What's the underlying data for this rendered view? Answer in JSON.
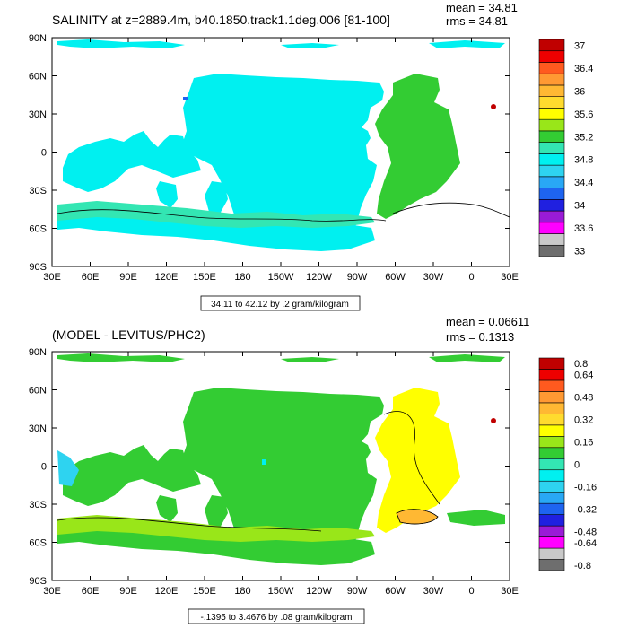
{
  "colors": {
    "background": "#ffffff",
    "land": "#ffffff",
    "frame": "#000000",
    "contour": "#000000"
  },
  "chart_data": [
    {
      "type": "heatmap",
      "title": "SALINITY at z=2889.4m, b40.1850.track1.1deg.006 [81-100]",
      "stats": {
        "mean": "mean = 34.81",
        "rms": "rms = 34.81"
      },
      "range_label": "34.11 to 42.12 by .2 gram/kilogram",
      "xlim": [
        30,
        390
      ],
      "ylim": [
        -90,
        90
      ],
      "x_ticks": [
        "30E",
        "60E",
        "90E",
        "120E",
        "150E",
        "180",
        "150W",
        "120W",
        "90W",
        "60W",
        "30W",
        "0",
        "30E"
      ],
      "y_ticks": [
        "90N",
        "60N",
        "30N",
        "0",
        "30S",
        "60S",
        "90S"
      ],
      "colorbar": {
        "colors": [
          "#6e6e6e",
          "#c9c9c9",
          "#ff00ff",
          "#9a1bd6",
          "#2020e0",
          "#1e64f0",
          "#29a8f5",
          "#2ed3f0",
          "#00f0f0",
          "#33e6b3",
          "#33cc33",
          "#99e619",
          "#ffff00",
          "#ffdb2e",
          "#ffb833",
          "#ff9933",
          "#ff5a1f",
          "#ee0000",
          "#c00000"
        ],
        "labels": [
          "33",
          "33.6",
          "34",
          "34.4",
          "34.8",
          "35.2",
          "35.6",
          "36",
          "36.4",
          "37"
        ],
        "label_positions": [
          0,
          2,
          4,
          6,
          8,
          10,
          12,
          14,
          16,
          18
        ]
      },
      "fields": {
        "pacific_indian": "#00f0f0",
        "atlantic": "#33cc33",
        "southern": "#33e6b3",
        "arctic": "#00f0f0",
        "med_spot": "#c00000",
        "spot_blue": "#1e64f0"
      }
    },
    {
      "type": "heatmap",
      "title": "(MODEL - LEVITUS/PHC2)",
      "stats": {
        "mean": "mean = 0.06611",
        "rms": "rms = 0.1313"
      },
      "range_label": "-.1395 to 3.4676 by .08 gram/kilogram",
      "xlim": [
        30,
        390
      ],
      "ylim": [
        -90,
        90
      ],
      "x_ticks": [
        "30E",
        "60E",
        "90E",
        "120E",
        "150E",
        "180",
        "150W",
        "120W",
        "90W",
        "60W",
        "30W",
        "0",
        "30E"
      ],
      "y_ticks": [
        "90N",
        "60N",
        "30N",
        "0",
        "30S",
        "60S",
        "90S"
      ],
      "colorbar": {
        "colors": [
          "#6e6e6e",
          "#c9c9c9",
          "#ff00ff",
          "#9a1bd6",
          "#2020e0",
          "#1e64f0",
          "#29a8f5",
          "#2ed3f0",
          "#00f0f0",
          "#33e6b3",
          "#33cc33",
          "#99e619",
          "#ffff00",
          "#ffdb2e",
          "#ffb833",
          "#ff9933",
          "#ff5a1f",
          "#ee0000",
          "#c00000"
        ],
        "labels": [
          "-0.8",
          "-0.64",
          "-0.48",
          "-0.32",
          "-0.16",
          "0",
          "0.16",
          "0.32",
          "0.48",
          "0.64",
          "0.8"
        ],
        "label_positions": [
          0,
          2,
          3,
          5,
          7,
          9,
          11,
          13,
          15,
          17,
          18
        ]
      },
      "fields": {
        "pacific_indian": "#33cc33",
        "atlantic": "#ffff00",
        "southern": "#99e619",
        "arctic": "#33cc33",
        "med_spot": "#c00000",
        "spot_blue": "#00f0f0"
      }
    }
  ]
}
